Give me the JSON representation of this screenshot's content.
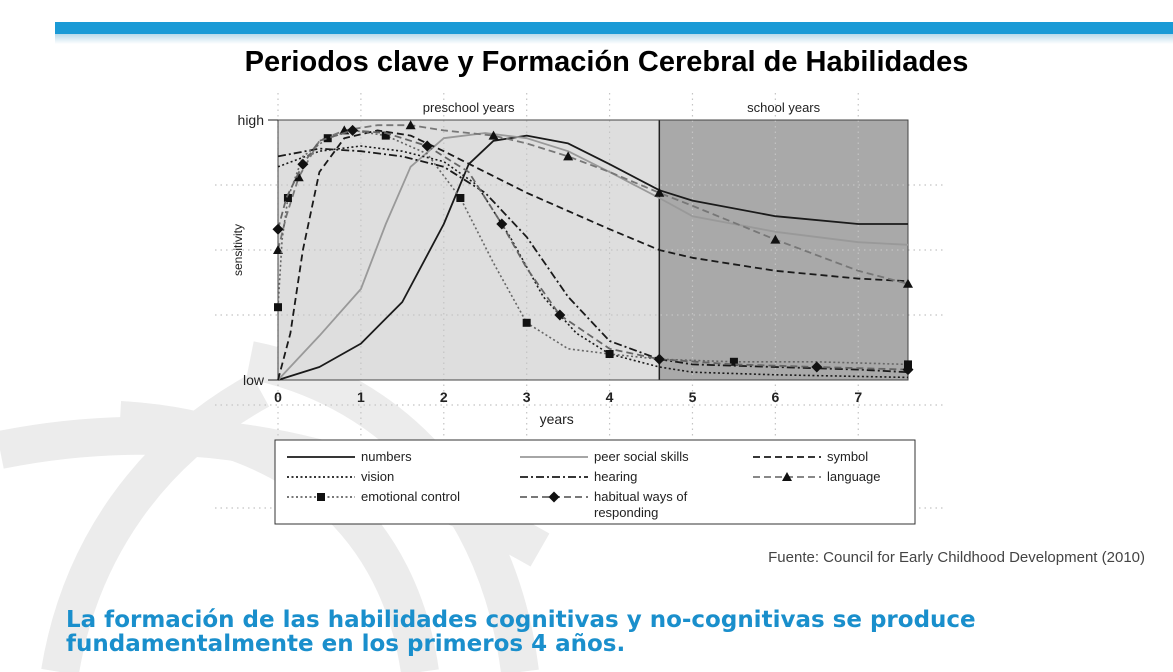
{
  "slide": {
    "title": "Periodos clave y Formación Cerebral de Habilidades",
    "source": "Fuente: Council for Early Childhood Development (2010)",
    "caption": "La formación de las habilidades cognitivas y no-cognitivas se produce fundamentalmente en los primeros 4 años.",
    "accent_color": "#1a9ad6"
  },
  "chart_data": {
    "type": "line",
    "title": "",
    "xlabel": "years",
    "ylabel": "sensitivity",
    "xlim": [
      0,
      7.6
    ],
    "ylim": [
      0,
      1
    ],
    "x_ticks": [
      "0",
      "1",
      "2",
      "3",
      "4",
      "5",
      "6",
      "7"
    ],
    "y_tick_labels": {
      "low": "low",
      "high": "high"
    },
    "grid": true,
    "regions": [
      {
        "label": "preschool years",
        "from": 0,
        "to": 4.6
      },
      {
        "label": "school years",
        "from": 4.6,
        "to": 7.6
      }
    ],
    "legend_position": "bottom",
    "series": [
      {
        "name": "numbers",
        "style": "solid",
        "color": "#1a1a1a",
        "points": [
          [
            0,
            0
          ],
          [
            0.5,
            0.05
          ],
          [
            1,
            0.14
          ],
          [
            1.5,
            0.3
          ],
          [
            2,
            0.6
          ],
          [
            2.3,
            0.83
          ],
          [
            2.6,
            0.92
          ],
          [
            3,
            0.94
          ],
          [
            3.5,
            0.91
          ],
          [
            4,
            0.83
          ],
          [
            4.6,
            0.73
          ],
          [
            5,
            0.69
          ],
          [
            6,
            0.63
          ],
          [
            7,
            0.6
          ],
          [
            7.6,
            0.6
          ]
        ]
      },
      {
        "name": "peer social skills",
        "style": "solid",
        "color": "#999999",
        "points": [
          [
            0,
            0
          ],
          [
            0.5,
            0.17
          ],
          [
            1,
            0.35
          ],
          [
            1.3,
            0.6
          ],
          [
            1.6,
            0.82
          ],
          [
            2,
            0.93
          ],
          [
            2.5,
            0.95
          ],
          [
            3,
            0.93
          ],
          [
            3.5,
            0.88
          ],
          [
            4,
            0.8
          ],
          [
            4.6,
            0.7
          ],
          [
            5,
            0.63
          ],
          [
            6,
            0.57
          ],
          [
            7,
            0.53
          ],
          [
            7.6,
            0.52
          ]
        ]
      },
      {
        "name": "symbol",
        "style": "dashed",
        "color": "#1a1a1a",
        "points": [
          [
            0,
            0
          ],
          [
            0.15,
            0.18
          ],
          [
            0.3,
            0.5
          ],
          [
            0.5,
            0.8
          ],
          [
            0.8,
            0.93
          ],
          [
            1.2,
            0.96
          ],
          [
            1.6,
            0.94
          ],
          [
            2,
            0.88
          ],
          [
            2.5,
            0.8
          ],
          [
            3,
            0.72
          ],
          [
            3.5,
            0.65
          ],
          [
            4,
            0.58
          ],
          [
            4.6,
            0.5
          ],
          [
            5,
            0.47
          ],
          [
            6,
            0.42
          ],
          [
            7,
            0.39
          ],
          [
            7.6,
            0.38
          ]
        ]
      },
      {
        "name": "vision",
        "style": "dotted",
        "color": "#1a1a1a",
        "points": [
          [
            0,
            0.82
          ],
          [
            0.5,
            0.88
          ],
          [
            1,
            0.9
          ],
          [
            1.5,
            0.88
          ],
          [
            2,
            0.84
          ],
          [
            2.4,
            0.75
          ],
          [
            2.8,
            0.55
          ],
          [
            3.2,
            0.32
          ],
          [
            3.6,
            0.18
          ],
          [
            4,
            0.1
          ],
          [
            4.6,
            0.05
          ],
          [
            5,
            0.03
          ],
          [
            6,
            0.02
          ],
          [
            7.6,
            0.01
          ]
        ]
      },
      {
        "name": "hearing",
        "style": "dashdot",
        "color": "#1a1a1a",
        "points": [
          [
            0,
            0.86
          ],
          [
            0.5,
            0.89
          ],
          [
            1,
            0.88
          ],
          [
            1.5,
            0.86
          ],
          [
            2,
            0.82
          ],
          [
            2.5,
            0.72
          ],
          [
            3,
            0.55
          ],
          [
            3.5,
            0.32
          ],
          [
            4,
            0.15
          ],
          [
            4.6,
            0.08
          ],
          [
            5,
            0.06
          ],
          [
            6,
            0.05
          ],
          [
            7,
            0.04
          ],
          [
            7.6,
            0.03
          ]
        ]
      },
      {
        "name": "language",
        "style": "dashed",
        "color": "#777777",
        "marker": "triangle",
        "points": [
          [
            0,
            0.5
          ],
          [
            0.1,
            0.63
          ],
          [
            0.25,
            0.78
          ],
          [
            0.5,
            0.92
          ],
          [
            0.8,
            0.96
          ],
          [
            1.2,
            0.98
          ],
          [
            1.6,
            0.98
          ],
          [
            2,
            0.96
          ],
          [
            2.6,
            0.94
          ],
          [
            3,
            0.91
          ],
          [
            3.5,
            0.86
          ],
          [
            4,
            0.8
          ],
          [
            4.6,
            0.72
          ],
          [
            5,
            0.67
          ],
          [
            6,
            0.54
          ],
          [
            7,
            0.42
          ],
          [
            7.6,
            0.37
          ]
        ]
      },
      {
        "name": "emotional control",
        "style": "dotted",
        "color": "#666666",
        "marker": "square",
        "points": [
          [
            0,
            0.28
          ],
          [
            0.05,
            0.54
          ],
          [
            0.12,
            0.7
          ],
          [
            0.3,
            0.86
          ],
          [
            0.6,
            0.93
          ],
          [
            0.9,
            0.96
          ],
          [
            1.3,
            0.94
          ],
          [
            1.8,
            0.87
          ],
          [
            2.2,
            0.7
          ],
          [
            2.6,
            0.45
          ],
          [
            3,
            0.22
          ],
          [
            3.5,
            0.12
          ],
          [
            4,
            0.1
          ],
          [
            4.6,
            0.08
          ],
          [
            5.5,
            0.07
          ],
          [
            6.5,
            0.07
          ],
          [
            7.6,
            0.06
          ]
        ]
      },
      {
        "name": "habitual ways of responding",
        "style": "dashed",
        "color": "#666666",
        "marker": "diamond",
        "points": [
          [
            0,
            0.58
          ],
          [
            0.1,
            0.7
          ],
          [
            0.3,
            0.83
          ],
          [
            0.5,
            0.92
          ],
          [
            0.9,
            0.96
          ],
          [
            1.3,
            0.95
          ],
          [
            1.8,
            0.9
          ],
          [
            2.3,
            0.8
          ],
          [
            2.7,
            0.6
          ],
          [
            3,
            0.43
          ],
          [
            3.4,
            0.25
          ],
          [
            4,
            0.12
          ],
          [
            4.6,
            0.08
          ],
          [
            5.5,
            0.06
          ],
          [
            6.5,
            0.05
          ],
          [
            7.6,
            0.04
          ]
        ]
      }
    ]
  }
}
